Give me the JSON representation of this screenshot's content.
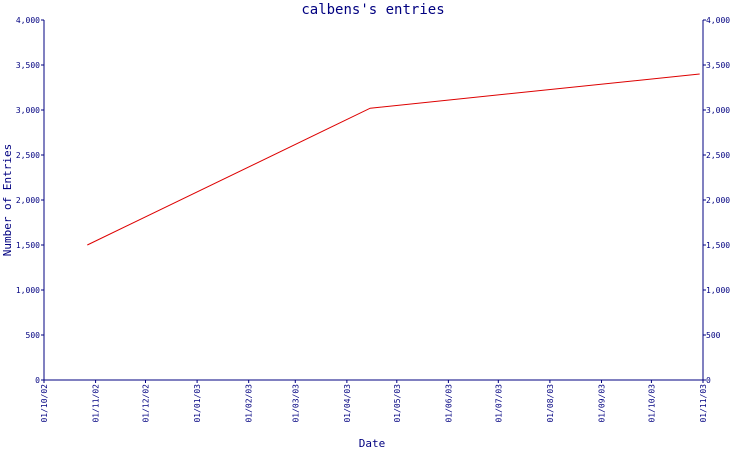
{
  "chart_data": {
    "type": "line",
    "title": "calbens's entries",
    "xlabel": "Date",
    "ylabel": "Number of Entries",
    "x_tick_labels": [
      "01/10/02",
      "01/11/02",
      "01/12/02",
      "01/01/03",
      "01/02/03",
      "01/03/03",
      "01/04/03",
      "01/05/03",
      "01/06/03",
      "01/07/03",
      "01/08/03",
      "01/09/03",
      "01/10/03",
      "01/11/03"
    ],
    "x_tick_dates": [
      "2002-10-01",
      "2002-11-01",
      "2002-12-01",
      "2003-01-01",
      "2003-02-01",
      "2003-03-01",
      "2003-04-01",
      "2003-05-01",
      "2003-06-01",
      "2003-07-01",
      "2003-08-01",
      "2003-09-01",
      "2003-10-01",
      "2003-11-01"
    ],
    "y_tick_values": [
      0,
      500,
      1000,
      1500,
      2000,
      2500,
      3000,
      3500,
      4000
    ],
    "y_tick_labels": [
      "0",
      "500",
      "1,000",
      "1,500",
      "2,000",
      "2,500",
      "3,000",
      "3,500",
      "4,000"
    ],
    "xlim": [
      "2002-10-01",
      "2003-11-01"
    ],
    "ylim": [
      0,
      4000
    ],
    "grid": false,
    "series": [
      {
        "color": "#dd0000",
        "points": [
          {
            "date": "2002-10-27",
            "value": 1500
          },
          {
            "date": "2003-04-15",
            "value": 3020
          },
          {
            "date": "2003-10-30",
            "value": 3400
          }
        ]
      }
    ],
    "colors": {
      "axis": "#000080",
      "text": "#000080",
      "line": "#dd0000"
    }
  }
}
